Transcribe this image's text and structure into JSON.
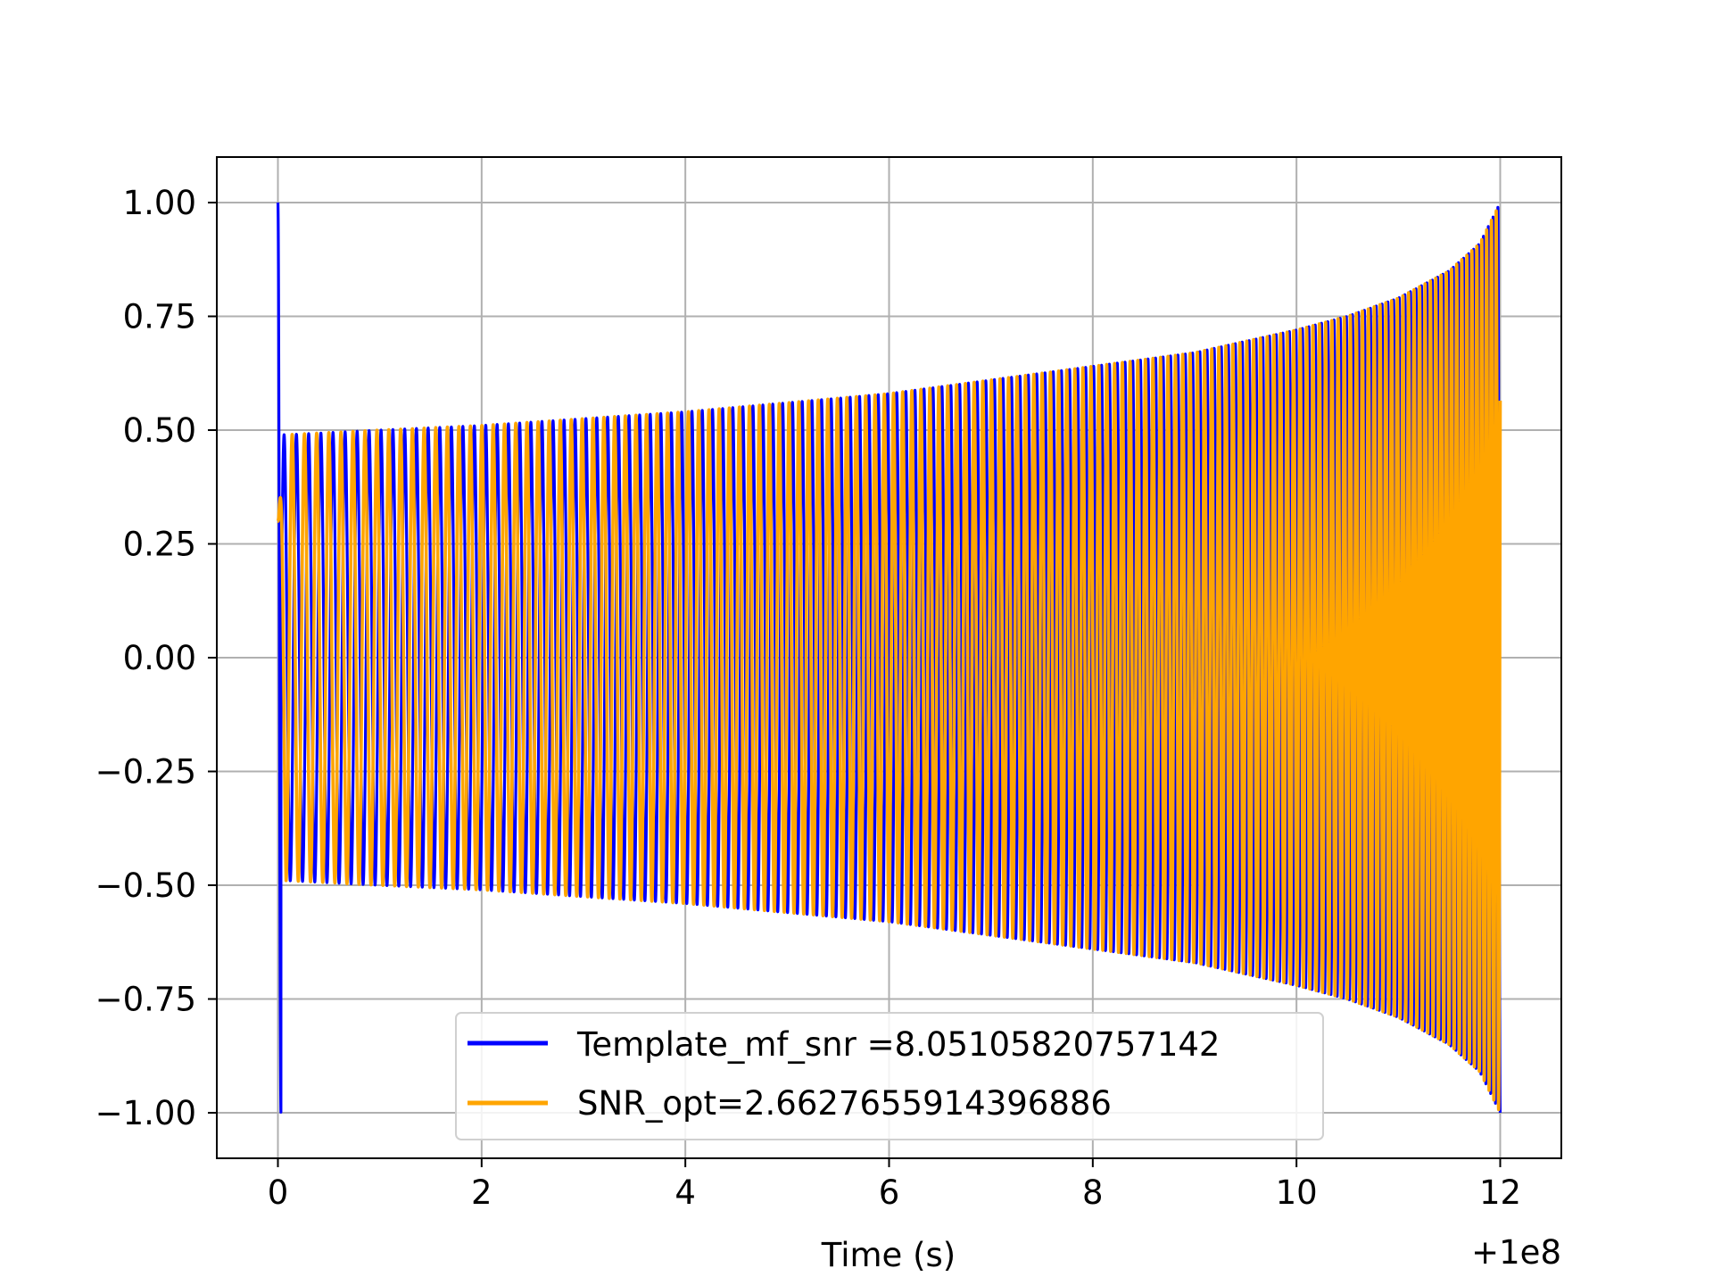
{
  "chart_data": {
    "type": "line",
    "title": "",
    "xlabel": "Time (s)",
    "ylabel": "",
    "x_offset_label": "+1e8",
    "xlim": [
      -0.6,
      12.6
    ],
    "ylim": [
      -1.1,
      1.1
    ],
    "x_ticks": [
      0,
      2,
      4,
      6,
      8,
      10,
      12
    ],
    "x_tick_labels": [
      "0",
      "2",
      "4",
      "6",
      "8",
      "10",
      "12"
    ],
    "y_ticks": [
      1.0,
      0.75,
      0.5,
      0.25,
      0.0,
      -0.25,
      -0.5,
      -0.75,
      -1.0
    ],
    "y_tick_labels": [
      "1.00",
      "0.75",
      "0.50",
      "0.25",
      "0.00",
      "−0.25",
      "−0.50",
      "−0.75",
      "−1.00"
    ],
    "grid": true,
    "legend_position": "lower-center",
    "series": [
      {
        "name": "Template_mf_snr =8.05105820757142",
        "color": "#0000ff",
        "t_start": 0,
        "t_end": 12,
        "initial_spike_amplitude": 1.0,
        "envelope_t": [
          0.1,
          1,
          2,
          3,
          4,
          5,
          6,
          7,
          8,
          9,
          10,
          10.5,
          11,
          11.5,
          11.8,
          12
        ],
        "envelope_amp": [
          0.49,
          0.5,
          0.51,
          0.525,
          0.54,
          0.56,
          0.58,
          0.61,
          0.64,
          0.67,
          0.72,
          0.75,
          0.79,
          0.85,
          0.91,
          1.0
        ],
        "cycles": 145
      },
      {
        "name": "SNR_opt=2.6627655914396886",
        "color": "#ffa500",
        "t_start": 0,
        "t_end": 12,
        "initial_value": 0.3,
        "envelope_t": [
          0.1,
          1,
          2,
          3,
          4,
          5,
          6,
          7,
          8,
          9,
          10,
          10.5,
          11,
          11.5,
          11.8,
          12
        ],
        "envelope_amp": [
          0.49,
          0.5,
          0.51,
          0.525,
          0.54,
          0.56,
          0.58,
          0.61,
          0.64,
          0.67,
          0.72,
          0.75,
          0.79,
          0.85,
          0.91,
          1.0
        ],
        "cycles": 145
      }
    ]
  }
}
